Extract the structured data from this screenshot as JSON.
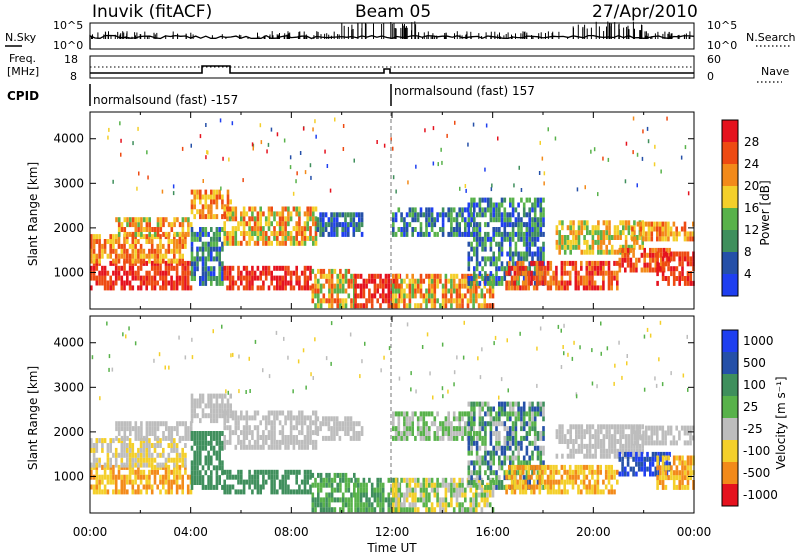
{
  "header": {
    "station": "Inuvik (fitACF)",
    "beam": "Beam 05",
    "date": "27/Apr/2010"
  },
  "labels": {
    "nsky": "N.Sky",
    "freq_line1": "Freq.",
    "freq_line2": "[MHz]",
    "cpid": "CPID",
    "nsearch": "N.Search",
    "nave": "Nave",
    "xlabel": "Time UT"
  },
  "nsky_panel": {
    "left_ticks": [
      "10^5",
      "10^0"
    ],
    "right_ticks": [
      "10^5",
      "10^0"
    ]
  },
  "freq_panel": {
    "left_ticks": [
      "18",
      "8"
    ],
    "right_ticks": [
      "60",
      "0"
    ]
  },
  "cpid_panel": {
    "modes": [
      {
        "text": "normalsound (fast) -157",
        "start_h": 0,
        "end_h": 12
      },
      {
        "text": "normalsound (fast) 157",
        "start_h": 12,
        "end_h": 24
      }
    ]
  },
  "colors": {
    "power": [
      "#1f3ff0",
      "#2550a8",
      "#3f8f5c",
      "#58b24a",
      "#f4cf2a",
      "#f38a1a",
      "#ee4a12",
      "#e5121e"
    ],
    "velocity": [
      "#1f3ff0",
      "#2550a8",
      "#3f8f5c",
      "#58b24a",
      "#bdbdbd",
      "#f4cf2a",
      "#f38a1a",
      "#e5121e"
    ]
  },
  "chart_data": [
    {
      "type": "heatmap",
      "name": "power",
      "x_unit": "UT hours",
      "xlim": [
        0,
        24
      ],
      "ylabel": "Slant Range [km]",
      "ylim": [
        180,
        4600
      ],
      "y_ticks": [
        1000,
        2000,
        3000,
        4000
      ],
      "x_ticks": [
        "00:00",
        "04:00",
        "08:00",
        "12:00",
        "16:00",
        "20:00",
        "00:00"
      ],
      "colorbar_label": "Power [dB]",
      "colorbar_ticks": [
        "28",
        "24",
        "20",
        "16",
        "12",
        "8",
        "4"
      ],
      "colorbar_range": [
        0,
        32
      ]
    },
    {
      "type": "heatmap",
      "name": "velocity",
      "x_unit": "UT hours",
      "xlim": [
        0,
        24
      ],
      "ylabel": "Slant Range [km]",
      "ylim": [
        180,
        4600
      ],
      "y_ticks": [
        1000,
        2000,
        3000,
        4000
      ],
      "x_ticks": [
        "00:00",
        "04:00",
        "08:00",
        "12:00",
        "16:00",
        "20:00",
        "00:00"
      ],
      "colorbar_label": "Velocity  [m s⁻¹]",
      "colorbar_ticks": [
        "1000",
        "500",
        "100",
        "25",
        "-25",
        "-100",
        "-500",
        "-1000"
      ]
    }
  ]
}
